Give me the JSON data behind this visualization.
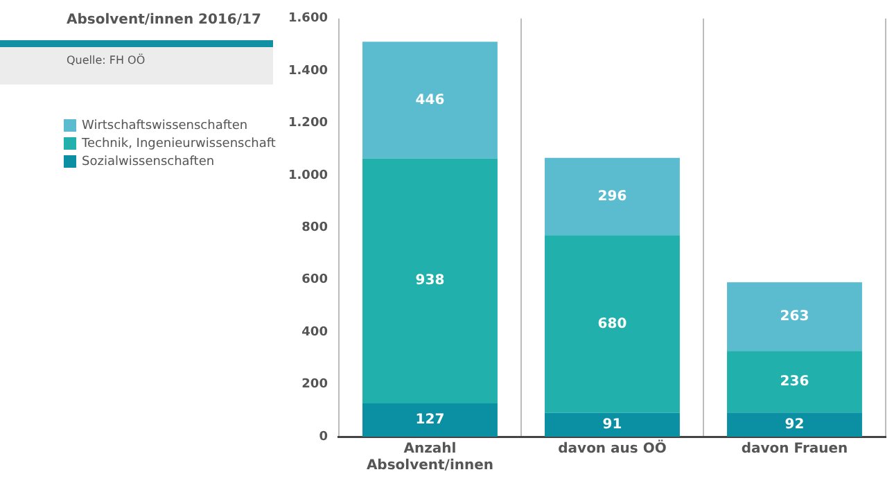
{
  "chart_data": {
    "type": "bar",
    "title": "Absolvent/innen 2016/17",
    "annotations": [
      "Quelle: FH OÖ"
    ],
    "categories": [
      "Anzahl Absolvent/innen",
      "davon aus OÖ",
      "davon Frauen"
    ],
    "stacked": true,
    "series": [
      {
        "name": "Sozialwissenschaften",
        "color": "#0a8fa3",
        "values": [
          127,
          91,
          92
        ]
      },
      {
        "name": "Technik, Ingenieurwissenschaft",
        "color": "#21b0ac",
        "values": [
          938,
          680,
          236
        ]
      },
      {
        "name": "Wirtschaftswissenschaften",
        "color": "#5bbcd0",
        "values": [
          446,
          296,
          263
        ]
      }
    ],
    "ylim": [
      0,
      1600
    ],
    "yticks": [
      0,
      {
        "value": 200,
        "label": "200"
      },
      {
        "value": 400,
        "label": "400"
      },
      {
        "value": 600,
        "label": "600"
      },
      {
        "value": 800,
        "label": "800"
      },
      {
        "value": 1000,
        "label": "1.000"
      },
      {
        "value": 1200,
        "label": "1.200"
      },
      {
        "value": 1400,
        "label": "1.400"
      },
      {
        "value": 1600,
        "label": "1.600"
      }
    ],
    "grid": "x",
    "legend": "left",
    "data_labels": true
  }
}
